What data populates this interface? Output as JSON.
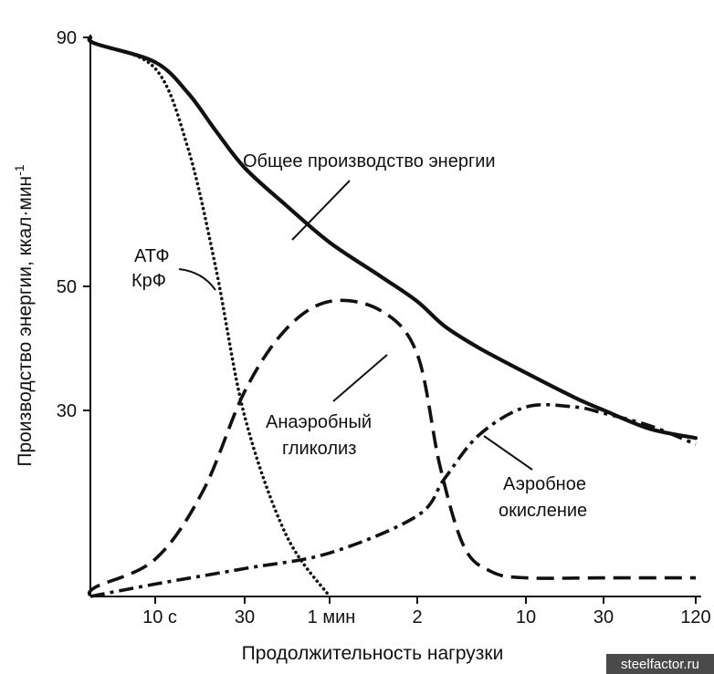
{
  "chart_data": {
    "type": "line",
    "title": "",
    "xlabel": "Продолжительность нагрузки",
    "ylabel": "Производство энергии, ккал·мин",
    "ylabel_superscript": "-1",
    "y_ticks": [
      "90",
      "50",
      "30"
    ],
    "y_tick_values": [
      90,
      50,
      30
    ],
    "ylim": [
      0,
      90
    ],
    "x_ticks": [
      "10 с",
      "30",
      "1 мин",
      "2",
      "10",
      "30",
      "120"
    ],
    "x_tick_values_min": [
      0.1667,
      0.5,
      1,
      2,
      10,
      30,
      120
    ],
    "x_scale": "log",
    "grid": false,
    "series": [
      {
        "name": "Общее производство энергии",
        "style": "solid",
        "x_min": [
          0.03,
          0.08,
          0.1667,
          0.25,
          0.35,
          0.5,
          0.7,
          1,
          1.5,
          2,
          3,
          5,
          10,
          20,
          30,
          60,
          120
        ],
        "y": [
          90,
          89,
          86,
          81,
          75,
          69,
          63,
          57,
          51.5,
          47.5,
          43.5,
          40,
          36,
          32,
          30,
          27,
          25.5
        ]
      },
      {
        "name": "АТФ КрФ",
        "style": "dotted",
        "x_min": [
          0.03,
          0.08,
          0.1667,
          0.25,
          0.35,
          0.5,
          0.7,
          1
        ],
        "y": [
          90,
          89,
          85,
          72,
          53,
          29,
          10,
          0
        ]
      },
      {
        "name": "Анаэробный гликолиз",
        "style": "dashed",
        "x_min": [
          0.03,
          0.08,
          0.1667,
          0.3,
          0.5,
          0.7,
          1,
          1.5,
          2,
          2.8,
          4,
          6,
          10,
          30,
          120
        ],
        "y": [
          0,
          1.5,
          6,
          17,
          33,
          43,
          47.5,
          46,
          39,
          21,
          8,
          4,
          3,
          3,
          3
        ]
      },
      {
        "name": "Аэробное окисление",
        "style": "dash-dot",
        "x_min": [
          0.03,
          0.1667,
          0.5,
          1,
          2,
          3,
          5,
          10,
          20,
          30,
          60,
          120
        ],
        "y": [
          0,
          2,
          4.5,
          7,
          13,
          19,
          26,
          30.5,
          30.5,
          29.5,
          27.5,
          24.5
        ]
      }
    ],
    "annotations": [
      {
        "text": "Общее производство энергии",
        "series": 0
      },
      {
        "text": "АТФ",
        "series": 1
      },
      {
        "text": "КрФ",
        "series": 1
      },
      {
        "text": "Анаэробный",
        "series": 2
      },
      {
        "text": "гликолиз",
        "series": 2
      },
      {
        "text": "Аэробное",
        "series": 3
      },
      {
        "text": "окисление",
        "series": 3
      }
    ]
  },
  "watermark": "steelfactor.ru",
  "colors": {
    "line": "#111111",
    "background": "#ffffff",
    "watermark_bg": "#4a4a4a"
  }
}
